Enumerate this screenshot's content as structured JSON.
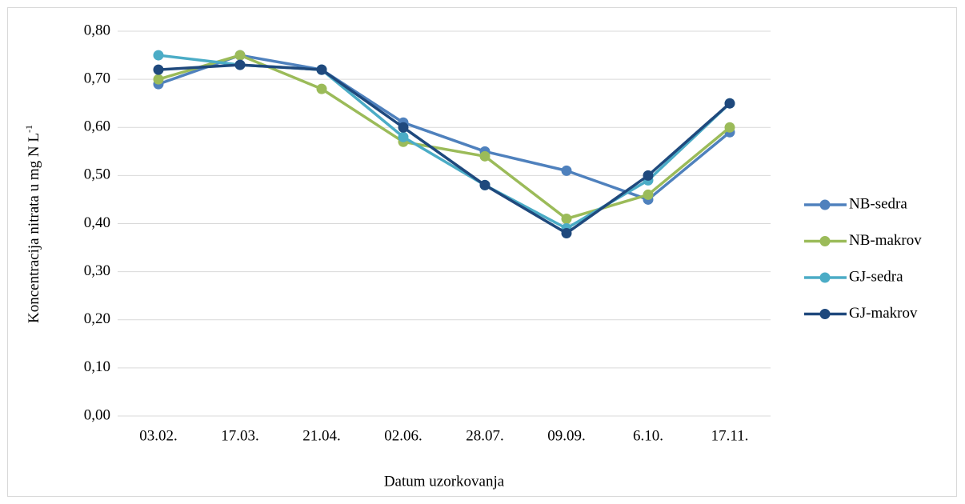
{
  "chart_data": {
    "type": "line",
    "x_label": "Datum uzorkovanja",
    "y_label": "Koncentracija nitrata u mg N L",
    "y_label_superscript": "-1",
    "categories": [
      "03.02.",
      "17.03.",
      "21.04.",
      "02.06.",
      "28.07.",
      "09.09.",
      "6.10.",
      "17.11."
    ],
    "series": [
      {
        "name": "NB-sedra",
        "color": "#4f81bd",
        "values": [
          0.69,
          0.75,
          0.72,
          0.61,
          0.55,
          0.51,
          0.45,
          0.59
        ]
      },
      {
        "name": "NB-makrov",
        "color": "#9bbb59",
        "values": [
          0.7,
          0.75,
          0.68,
          0.57,
          0.54,
          0.41,
          0.46,
          0.6
        ]
      },
      {
        "name": "GJ-sedra",
        "color": "#4bacc6",
        "values": [
          0.75,
          0.73,
          0.72,
          0.58,
          0.48,
          0.39,
          0.49,
          0.65
        ]
      },
      {
        "name": "GJ-makrov",
        "color": "#1f497d",
        "values": [
          0.72,
          0.73,
          0.72,
          0.6,
          0.48,
          0.38,
          0.5,
          0.65
        ]
      }
    ],
    "ylim": [
      0,
      0.8
    ],
    "yticks": [
      {
        "value": 0,
        "label": "0,00"
      },
      {
        "value": 0.1,
        "label": "0,10"
      },
      {
        "value": 0.2,
        "label": "0,20"
      },
      {
        "value": 0.3,
        "label": "0,30"
      },
      {
        "value": 0.4,
        "label": "0,40"
      },
      {
        "value": 0.5,
        "label": "0,50"
      },
      {
        "value": 0.6,
        "label": "0,60"
      },
      {
        "value": 0.7,
        "label": "0,70"
      },
      {
        "value": 0.8,
        "label": "0,80"
      }
    ],
    "grid": true,
    "legend": "right"
  }
}
